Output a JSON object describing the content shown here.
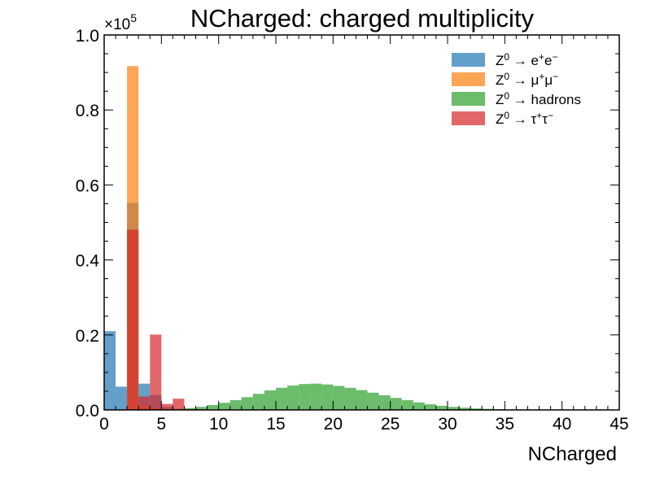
{
  "chart_data": {
    "type": "bar",
    "title": "NCharged: charged multiplicity",
    "xlabel": "NCharged",
    "ylabel": "",
    "xlim": [
      0,
      45
    ],
    "ylim": [
      0,
      1.0
    ],
    "y_multiplier": {
      "base": "×10",
      "exponent": "5"
    },
    "bin_width": 1,
    "x_ticks": [
      "0",
      "5",
      "10",
      "15",
      "20",
      "25",
      "30",
      "35",
      "40",
      "45"
    ],
    "y_ticks": [
      "0.0",
      "0.2",
      "0.4",
      "0.6",
      "0.8",
      "1.0"
    ],
    "legend_position": "top-right",
    "series": [
      {
        "name": "Z⁰ → e⁺e⁻",
        "legend": {
          "base": "Z",
          "sup1": "0",
          "arrow": " → ",
          "p1": "e",
          "s1": "+",
          "p2": "e",
          "s2": "−"
        },
        "color": "#1f77b4",
        "bins": [
          [
            0,
            0.21
          ],
          [
            1,
            0.062
          ],
          [
            2,
            0.552
          ],
          [
            3,
            0.07
          ],
          [
            4,
            0.04
          ],
          [
            5,
            0.008
          ]
        ]
      },
      {
        "name": "Z⁰ → μ⁺μ⁻",
        "legend": {
          "base": "Z",
          "sup1": "0",
          "arrow": " → ",
          "p1": "μ",
          "s1": "+",
          "p2": "μ",
          "s2": "−"
        },
        "color": "#ff7f0e",
        "bins": [
          [
            2,
            0.917
          ],
          [
            3,
            0.01
          ],
          [
            4,
            0.004
          ]
        ]
      },
      {
        "name": "Z⁰ → hadrons",
        "legend": {
          "base": "Z",
          "sup1": "0",
          "arrow": " → ",
          "p1": "hadrons",
          "s1": "",
          "p2": "",
          "s2": ""
        },
        "color": "#2ca02c",
        "bins": [
          [
            2,
            0.0005
          ],
          [
            3,
            0.001
          ],
          [
            4,
            0.002
          ],
          [
            5,
            0.002
          ],
          [
            6,
            0.003
          ],
          [
            7,
            0.005
          ],
          [
            8,
            0.008
          ],
          [
            9,
            0.013
          ],
          [
            10,
            0.019
          ],
          [
            11,
            0.026
          ],
          [
            12,
            0.034
          ],
          [
            13,
            0.043
          ],
          [
            14,
            0.052
          ],
          [
            15,
            0.059
          ],
          [
            16,
            0.065
          ],
          [
            17,
            0.069
          ],
          [
            18,
            0.07
          ],
          [
            19,
            0.068
          ],
          [
            20,
            0.064
          ],
          [
            21,
            0.059
          ],
          [
            22,
            0.053
          ],
          [
            23,
            0.046
          ],
          [
            24,
            0.039
          ],
          [
            25,
            0.032
          ],
          [
            26,
            0.026
          ],
          [
            27,
            0.02
          ],
          [
            28,
            0.015
          ],
          [
            29,
            0.011
          ],
          [
            30,
            0.008
          ],
          [
            31,
            0.006
          ],
          [
            32,
            0.004
          ],
          [
            33,
            0.003
          ],
          [
            34,
            0.002
          ],
          [
            35,
            0.0013
          ],
          [
            36,
            0.0008
          ],
          [
            37,
            0.0005
          ],
          [
            38,
            0.0003
          ],
          [
            39,
            0.0002
          ]
        ]
      },
      {
        "name": "Z⁰ → τ⁺τ⁻",
        "legend": {
          "base": "Z",
          "sup1": "0",
          "arrow": " → ",
          "p1": "τ",
          "s1": "+",
          "p2": "τ",
          "s2": "−"
        },
        "color": "#d62728",
        "bins": [
          [
            2,
            0.481
          ],
          [
            3,
            0.036
          ],
          [
            4,
            0.201
          ],
          [
            5,
            0.016
          ],
          [
            6,
            0.03
          ],
          [
            7,
            0.002
          ],
          [
            8,
            0.002
          ]
        ]
      }
    ]
  }
}
